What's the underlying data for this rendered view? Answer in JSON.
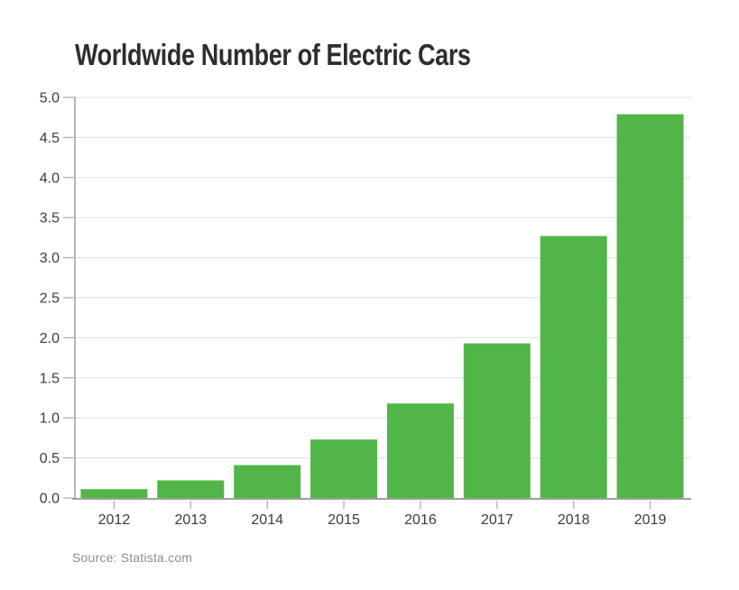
{
  "footer": {
    "source": "Source: Statista.com"
  },
  "colors": {
    "bar": "#52b548",
    "grid": "#e4e4e4",
    "axis": "#9f9f9f",
    "tick": "#b0b0b0",
    "tick_label": "#3c3c3c",
    "title": "#2e2e2e",
    "source": "#8d8d8d",
    "background": "#ffffff"
  },
  "chart_data": {
    "type": "bar",
    "title": "Worldwide Number of Electric Cars",
    "categories": [
      "2012",
      "2013",
      "2014",
      "2015",
      "2016",
      "2017",
      "2018",
      "2019"
    ],
    "values": [
      0.11,
      0.22,
      0.41,
      0.73,
      1.18,
      1.93,
      3.27,
      4.79
    ],
    "xlabel": "",
    "ylabel": "",
    "ylim": [
      0,
      5
    ],
    "ytick_step": 0.5,
    "yticks": [
      "0.0",
      "0.5",
      "1.0",
      "1.5",
      "2.0",
      "2.5",
      "3.0",
      "3.5",
      "4.0",
      "4.5",
      "5.0"
    ],
    "grid": true,
    "legend": false
  }
}
